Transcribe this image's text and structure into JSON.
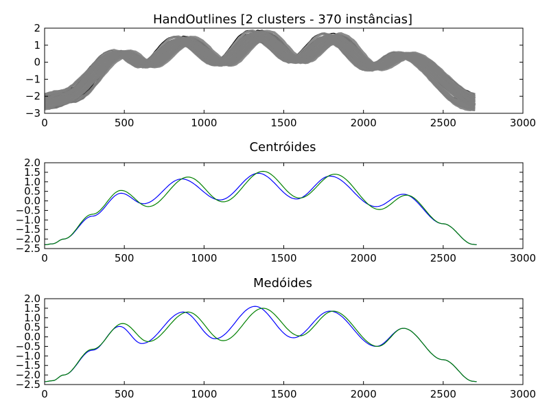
{
  "chart_data": [
    {
      "type": "line",
      "title": "HandOutlines [2 clusters - 370 instâncias]",
      "xlabel": "",
      "ylabel": "",
      "xlim": [
        0,
        3000
      ],
      "ylim": [
        -3,
        2
      ],
      "xticks": [
        0,
        500,
        1000,
        1500,
        2000,
        2500,
        3000
      ],
      "yticks": [
        -3,
        -2,
        -1,
        0,
        1,
        2
      ],
      "ytick_labels": [
        "−3",
        "−2",
        "−1",
        "0",
        "1",
        "2"
      ],
      "grid": false,
      "series_colors": [
        "#000000",
        "#808080"
      ],
      "reference_curve": {
        "x": [
          0,
          120,
          480,
          640,
          870,
          1110,
          1340,
          1580,
          1800,
          2060,
          2250,
          2710
        ],
        "y": [
          -2.3,
          -2.0,
          0.5,
          -0.15,
          1.2,
          -0.05,
          1.5,
          0.1,
          1.35,
          -0.3,
          0.4,
          -2.3
        ]
      }
    },
    {
      "type": "line",
      "title": "Centróides",
      "xlabel": "",
      "ylabel": "",
      "xlim": [
        0,
        3000
      ],
      "ylim": [
        -2.5,
        2.0
      ],
      "xticks": [
        0,
        500,
        1000,
        1500,
        2000,
        2500,
        3000
      ],
      "yticks": [
        -2.5,
        -2.0,
        -1.5,
        -1.0,
        -0.5,
        0.0,
        0.5,
        1.0,
        1.5,
        2.0
      ],
      "ytick_labels": [
        "−2.5",
        "−2.0",
        "−1.5",
        "−1.0",
        "−0.5",
        "0.0",
        "0.5",
        "1.0",
        "1.5",
        "2.0"
      ],
      "grid": false,
      "series": [
        {
          "color": "#0000ff",
          "x": [
            0,
            50,
            120,
            300,
            480,
            620,
            860,
            1100,
            1340,
            1580,
            1790,
            2080,
            2250,
            2500,
            2690,
            2710
          ],
          "y": [
            -2.3,
            -2.25,
            -2.0,
            -0.8,
            0.4,
            -0.15,
            1.15,
            0.05,
            1.45,
            0.1,
            1.3,
            -0.3,
            0.35,
            -1.2,
            -2.28,
            -2.3
          ]
        },
        {
          "color": "#008000",
          "x": [
            0,
            50,
            120,
            300,
            480,
            650,
            900,
            1120,
            1370,
            1600,
            1820,
            2100,
            2270,
            2500,
            2690,
            2710
          ],
          "y": [
            -2.3,
            -2.25,
            -2.0,
            -0.7,
            0.55,
            -0.3,
            1.25,
            -0.05,
            1.55,
            0.15,
            1.4,
            -0.45,
            0.3,
            -1.2,
            -2.28,
            -2.3
          ]
        }
      ]
    },
    {
      "type": "line",
      "title": "Medóides",
      "xlabel": "",
      "ylabel": "",
      "xlim": [
        0,
        3000
      ],
      "ylim": [
        -2.5,
        2.0
      ],
      "xticks": [
        0,
        500,
        1000,
        1500,
        2000,
        2500,
        3000
      ],
      "yticks": [
        -2.5,
        -2.0,
        -1.5,
        -1.0,
        -0.5,
        0.0,
        0.5,
        1.0,
        1.5,
        2.0
      ],
      "ytick_labels": [
        "−2.5",
        "−2.0",
        "−1.5",
        "−1.0",
        "−0.5",
        "0.0",
        "0.5",
        "1.0",
        "1.5",
        "2.0"
      ],
      "grid": false,
      "series": [
        {
          "color": "#0000ff",
          "x": [
            0,
            50,
            120,
            300,
            470,
            610,
            870,
            1070,
            1320,
            1560,
            1790,
            2080,
            2250,
            2500,
            2690,
            2710
          ],
          "y": [
            -2.35,
            -2.3,
            -2.0,
            -0.7,
            0.55,
            -0.35,
            1.3,
            -0.1,
            1.6,
            -0.05,
            1.35,
            -0.5,
            0.45,
            -1.2,
            -2.33,
            -2.35
          ]
        },
        {
          "color": "#008000",
          "x": [
            0,
            50,
            120,
            300,
            490,
            650,
            900,
            1120,
            1370,
            1600,
            1810,
            2090,
            2250,
            2500,
            2690,
            2710
          ],
          "y": [
            -2.35,
            -2.3,
            -2.0,
            -0.65,
            0.7,
            -0.25,
            1.3,
            -0.2,
            1.5,
            0.05,
            1.35,
            -0.5,
            0.45,
            -1.2,
            -2.33,
            -2.35
          ]
        }
      ]
    }
  ]
}
